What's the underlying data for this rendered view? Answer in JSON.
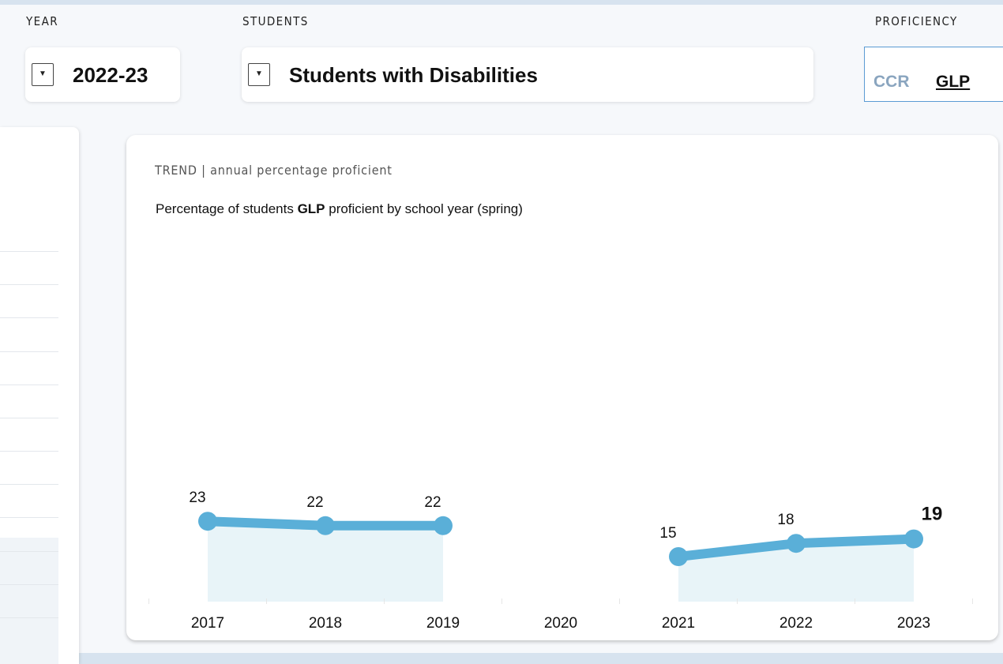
{
  "filters": {
    "year": {
      "label": "YEAR",
      "value": "2022-23"
    },
    "students": {
      "label": "STUDENTS",
      "value": "Students with Disabilities"
    },
    "proficiency": {
      "label": "PROFICIENCY",
      "options": [
        "CCR",
        "GLP"
      ],
      "selected": "GLP"
    }
  },
  "dropdown_icon": "▼",
  "trend": {
    "heading": "TREND | annual percentage proficient",
    "subtitle_prefix": "Percentage of students ",
    "subtitle_bold": "GLP",
    "subtitle_suffix": " proficient by school year (spring)"
  },
  "colors": {
    "line": "#5aafd8",
    "area": "#e8f4f8",
    "inactive_option": "#8aa5bf",
    "active_option": "#111111"
  },
  "chart_data": {
    "type": "line",
    "x": [
      "2017",
      "2018",
      "2019",
      "2020",
      "2021",
      "2022",
      "2023"
    ],
    "series": [
      {
        "values": [
          23,
          22,
          22,
          null,
          15,
          18,
          19
        ]
      }
    ],
    "data_labels": [
      "23",
      "22",
      "22",
      "",
      "15",
      "18",
      "19"
    ],
    "highlighted_point": "2023",
    "title": "Percentage of students GLP proficient by school year (spring)",
    "xlabel": "",
    "ylabel": "",
    "ylim": [
      0,
      100
    ],
    "grid": false
  }
}
